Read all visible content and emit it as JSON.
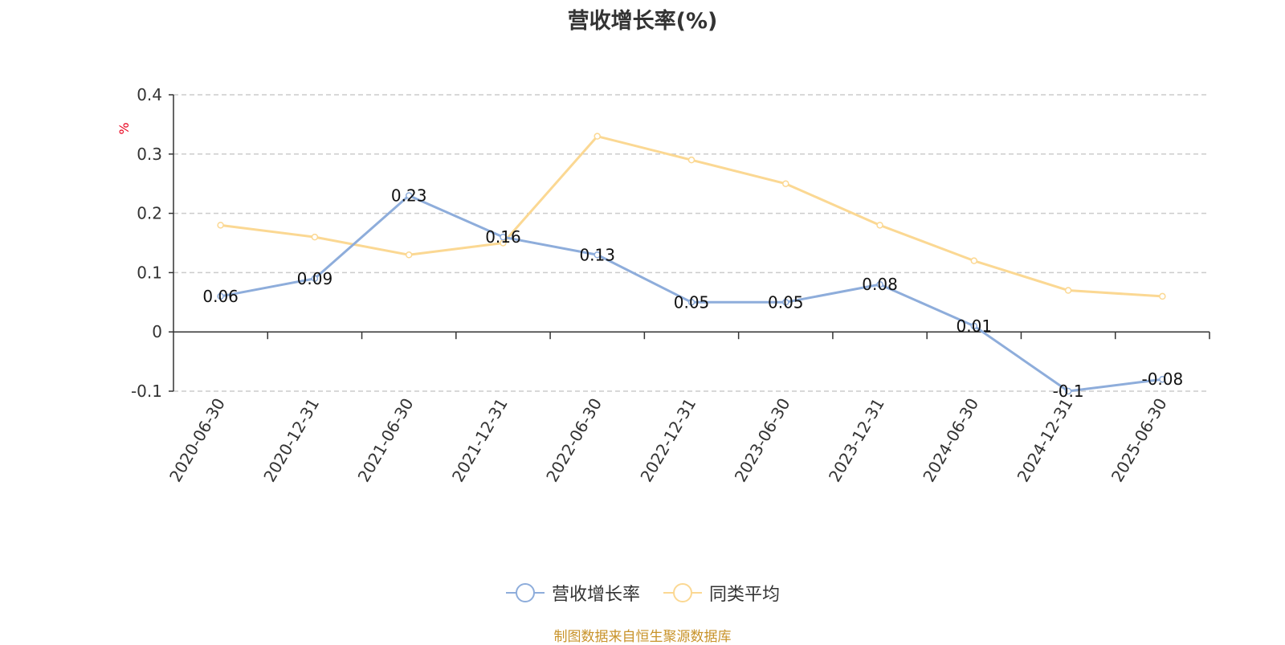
{
  "chart_data": {
    "type": "line",
    "title": "营收增长率(%)",
    "ylabel": "%",
    "xlabel": "",
    "categories": [
      "2020-06-30",
      "2020-12-31",
      "2021-06-30",
      "2021-12-31",
      "2022-06-30",
      "2022-12-31",
      "2023-06-30",
      "2023-12-31",
      "2024-06-30",
      "2024-12-31",
      "2025-06-30"
    ],
    "series": [
      {
        "name": "营收增长率",
        "color": "#8eaddb",
        "show_labels": true,
        "values": [
          0.06,
          0.09,
          0.23,
          0.16,
          0.13,
          0.05,
          0.05,
          0.08,
          0.01,
          -0.1,
          -0.08
        ]
      },
      {
        "name": "同类平均",
        "color": "#fbd893",
        "show_labels": false,
        "values": [
          0.18,
          0.16,
          0.13,
          0.15,
          0.33,
          0.29,
          0.25,
          0.18,
          0.12,
          0.07,
          0.06
        ]
      }
    ],
    "ylim": [
      -0.1,
      0.4
    ],
    "yticks": [
      -0.1,
      0,
      0.1,
      0.2,
      0.3,
      0.4
    ],
    "ytick_labels": [
      "-0.1",
      "0",
      "0.1",
      "0.2",
      "0.3",
      "0.4"
    ],
    "grid": true,
    "legend_position": "bottom-center"
  },
  "footer": "制图数据来自恒生聚源数据库"
}
